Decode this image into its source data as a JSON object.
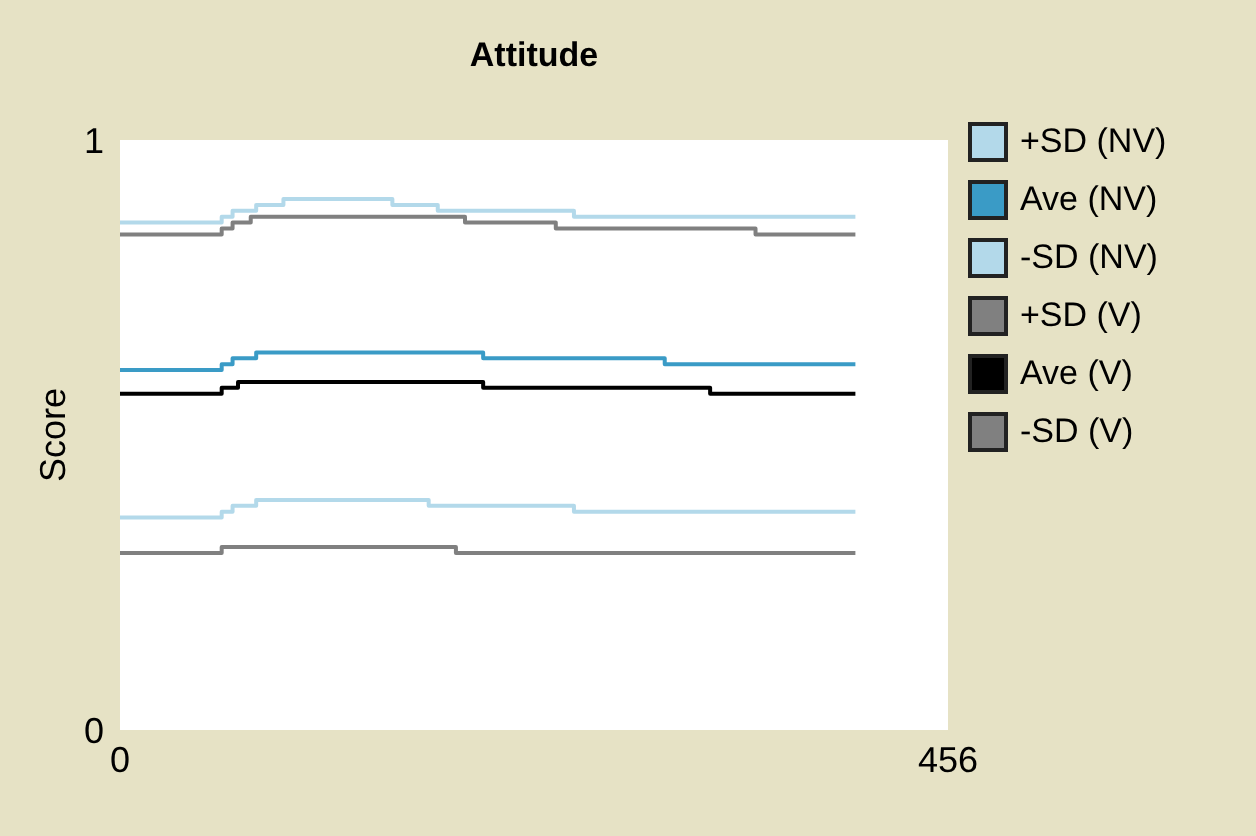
{
  "chart_data": {
    "type": "step",
    "title": "Attitude",
    "ylabel": "Score",
    "xlim": [
      0,
      456
    ],
    "xticks": [
      0,
      456
    ],
    "ylim": [
      0,
      1
    ],
    "yticks": [
      0,
      1
    ],
    "grid": false,
    "legend": "right",
    "series": [
      {
        "name": "+SD (NV)",
        "color": "#b3d9ea",
        "x": [
          0,
          52,
          56,
          62,
          75,
          90,
          150,
          175,
          250,
          405
        ],
        "values": [
          0.86,
          0.86,
          0.87,
          0.88,
          0.89,
          0.9,
          0.89,
          0.88,
          0.87,
          0.87
        ]
      },
      {
        "name": "Ave (NV)",
        "color": "#3a9bc6",
        "x": [
          0,
          52,
          56,
          62,
          75,
          150,
          200,
          300,
          405
        ],
        "values": [
          0.61,
          0.61,
          0.62,
          0.63,
          0.64,
          0.64,
          0.63,
          0.62,
          0.62
        ]
      },
      {
        "name": "-SD (NV)",
        "color": "#b3d9ea",
        "x": [
          0,
          52,
          56,
          62,
          75,
          150,
          170,
          250,
          405
        ],
        "values": [
          0.36,
          0.36,
          0.37,
          0.38,
          0.39,
          0.39,
          0.38,
          0.37,
          0.37
        ]
      },
      {
        "name": "+SD (V)",
        "color": "#808080",
        "x": [
          0,
          52,
          56,
          62,
          72,
          150,
          190,
          240,
          350,
          405
        ],
        "values": [
          0.84,
          0.84,
          0.85,
          0.86,
          0.87,
          0.87,
          0.86,
          0.85,
          0.84,
          0.84
        ]
      },
      {
        "name": "Ave (V)",
        "color": "#000000",
        "x": [
          0,
          52,
          56,
          65,
          150,
          200,
          325,
          405
        ],
        "values": [
          0.57,
          0.57,
          0.58,
          0.59,
          0.59,
          0.58,
          0.57,
          0.57
        ]
      },
      {
        "name": "-SD (V)",
        "color": "#808080",
        "x": [
          0,
          52,
          56,
          180,
          185,
          405
        ],
        "values": [
          0.3,
          0.3,
          0.31,
          0.31,
          0.3,
          0.3
        ]
      }
    ]
  }
}
